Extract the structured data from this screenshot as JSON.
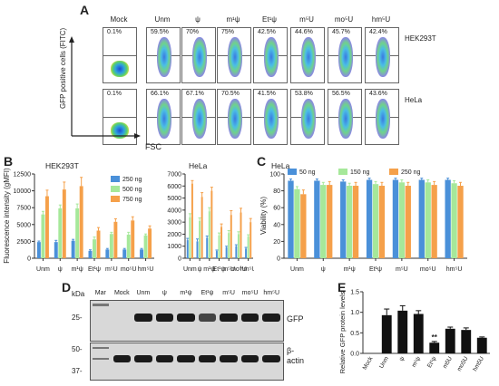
{
  "panelA": {
    "letter": "A",
    "ylabel": "GFP positive cells (FITC)",
    "xlabel": "FSC",
    "columns": [
      "Mock",
      "Unm",
      "ψ",
      "m¹ψ",
      "Et¹ψ",
      "m⁵U",
      "mo⁵U",
      "hm⁵U"
    ],
    "rows": [
      {
        "label": "HEK293T",
        "values": [
          "0.1%",
          "59.5%",
          "70%",
          "75%",
          "42.5%",
          "44.6%",
          "45.7%",
          "42.4%"
        ]
      },
      {
        "label": "HeLa",
        "values": [
          "0.1%",
          "66.1%",
          "67.1%",
          "70.5%",
          "41.5%",
          "53.8%",
          "56.5%",
          "43.6%"
        ]
      }
    ]
  },
  "panelB": {
    "letter": "B",
    "ylabel": "Fluorescence intensity (gMFI)"
  },
  "panelC": {
    "letter": "C"
  },
  "panelD": {
    "letter": "D",
    "kda": "kDa",
    "lanes": [
      "Mar",
      "Mock",
      "Unm",
      "ψ",
      "m¹ψ",
      "Et¹ψ",
      "m⁵U",
      "mo⁵U",
      "hm⁵U"
    ],
    "gfp_marker": "25-",
    "gfp_label": "GFP",
    "actin_markers": [
      "50-",
      "37-"
    ],
    "actin_label": "β-\nactin"
  },
  "panelE": {
    "letter": "E"
  },
  "colors": {
    "blue": "#4a90d9",
    "green": "#a6e89a",
    "orange": "#f5a04a",
    "black": "#111111"
  },
  "chart_data": [
    {
      "id": "B-HEK293T",
      "type": "bar",
      "title": "HEK293T",
      "ylabel": "Fluorescence intensity (gMFI)",
      "categories": [
        "Unm",
        "ψ",
        "m¹ψ",
        "Et¹ψ",
        "m⁵U",
        "mo⁵U",
        "hm⁵U"
      ],
      "yticks": [
        0,
        2500,
        5000,
        7500,
        10000,
        12500
      ],
      "ylim": [
        0,
        12500
      ],
      "legend": "top-right",
      "series": [
        {
          "name": "250 ng",
          "color": "#4a90d9",
          "values": [
            2400,
            2400,
            2600,
            1100,
            1300,
            1300,
            1300
          ],
          "errors": [
            150,
            250,
            200,
            150,
            150,
            150,
            150
          ]
        },
        {
          "name": "500 ng",
          "color": "#a6e89a",
          "values": [
            6500,
            7400,
            7400,
            2800,
            3600,
            3500,
            3400
          ],
          "errors": [
            450,
            500,
            650,
            350,
            250,
            350,
            200
          ]
        },
        {
          "name": "750 ng",
          "color": "#f5a04a",
          "values": [
            9200,
            10200,
            10700,
            4100,
            5400,
            5600,
            4400
          ],
          "errors": [
            900,
            1100,
            1300,
            450,
            450,
            550,
            400
          ]
        }
      ]
    },
    {
      "id": "B-HeLa",
      "type": "bar",
      "title": "HeLa",
      "categories": [
        "Unm",
        "ψ",
        "m¹ψ",
        "Et¹ψ",
        "m⁵U",
        "mo⁵U",
        "hm⁵U"
      ],
      "yticks": [
        0,
        1000,
        2000,
        3000,
        4000,
        5000,
        6000,
        7000
      ],
      "ylim": [
        0,
        7000
      ],
      "series": [
        {
          "name": "250 ng",
          "color": "#4a90d9",
          "values": [
            1500,
            1400,
            1700,
            600,
            900,
            1000,
            800
          ],
          "errors": [
            150,
            200,
            150,
            80,
            100,
            120,
            100
          ]
        },
        {
          "name": "500 ng",
          "color": "#a6e89a",
          "values": [
            3400,
            3100,
            3900,
            1900,
            2100,
            2000,
            1800
          ],
          "errors": [
            300,
            250,
            300,
            200,
            200,
            200,
            150
          ]
        },
        {
          "name": "750 ng",
          "color": "#f5a04a",
          "values": [
            6200,
            5100,
            5600,
            2600,
            3600,
            3800,
            3000
          ],
          "errors": [
            250,
            350,
            300,
            250,
            350,
            350,
            300
          ]
        }
      ]
    },
    {
      "id": "C",
      "type": "bar",
      "title": "HeLa",
      "ylabel": "Viability (%)",
      "categories": [
        "Unm",
        "ψ",
        "m¹ψ",
        "Et¹ψ",
        "m⁵U",
        "mo⁵U",
        "hm⁵U"
      ],
      "yticks": [
        0,
        20,
        40,
        60,
        80,
        100
      ],
      "ylim": [
        0,
        100
      ],
      "legend": "top",
      "series": [
        {
          "name": "50 ng",
          "color": "#4a90d9",
          "values": [
            92,
            92,
            91,
            93,
            93,
            93,
            93
          ],
          "errors": [
            2,
            2,
            2,
            2,
            2,
            2,
            2
          ]
        },
        {
          "name": "150 ng",
          "color": "#a6e89a",
          "values": [
            82,
            87,
            86,
            88,
            90,
            90,
            89
          ],
          "errors": [
            3,
            3,
            3,
            3,
            3,
            3,
            3
          ]
        },
        {
          "name": "250 ng",
          "color": "#f5a04a",
          "values": [
            76,
            87,
            86,
            86,
            86,
            87,
            86
          ],
          "errors": [
            5,
            4,
            4,
            4,
            4,
            4,
            4
          ]
        }
      ]
    },
    {
      "id": "E",
      "type": "bar",
      "ylabel": "Relative GFP protein levels",
      "categories": [
        "Mock",
        "Unm",
        "ψ",
        "m¹ψ",
        "Et¹ψ",
        "m5U",
        "mo5U",
        "hm5U"
      ],
      "yticks": [
        0.0,
        0.5,
        1.0,
        1.5
      ],
      "ylim": [
        0,
        1.5
      ],
      "values": [
        0.0,
        0.93,
        1.04,
        0.96,
        0.26,
        0.6,
        0.57,
        0.38
      ],
      "errors": [
        0,
        0.15,
        0.12,
        0.08,
        0.03,
        0.04,
        0.05,
        0.02
      ],
      "annotations": [
        {
          "category": "Et¹ψ",
          "text": "**"
        }
      ]
    }
  ]
}
